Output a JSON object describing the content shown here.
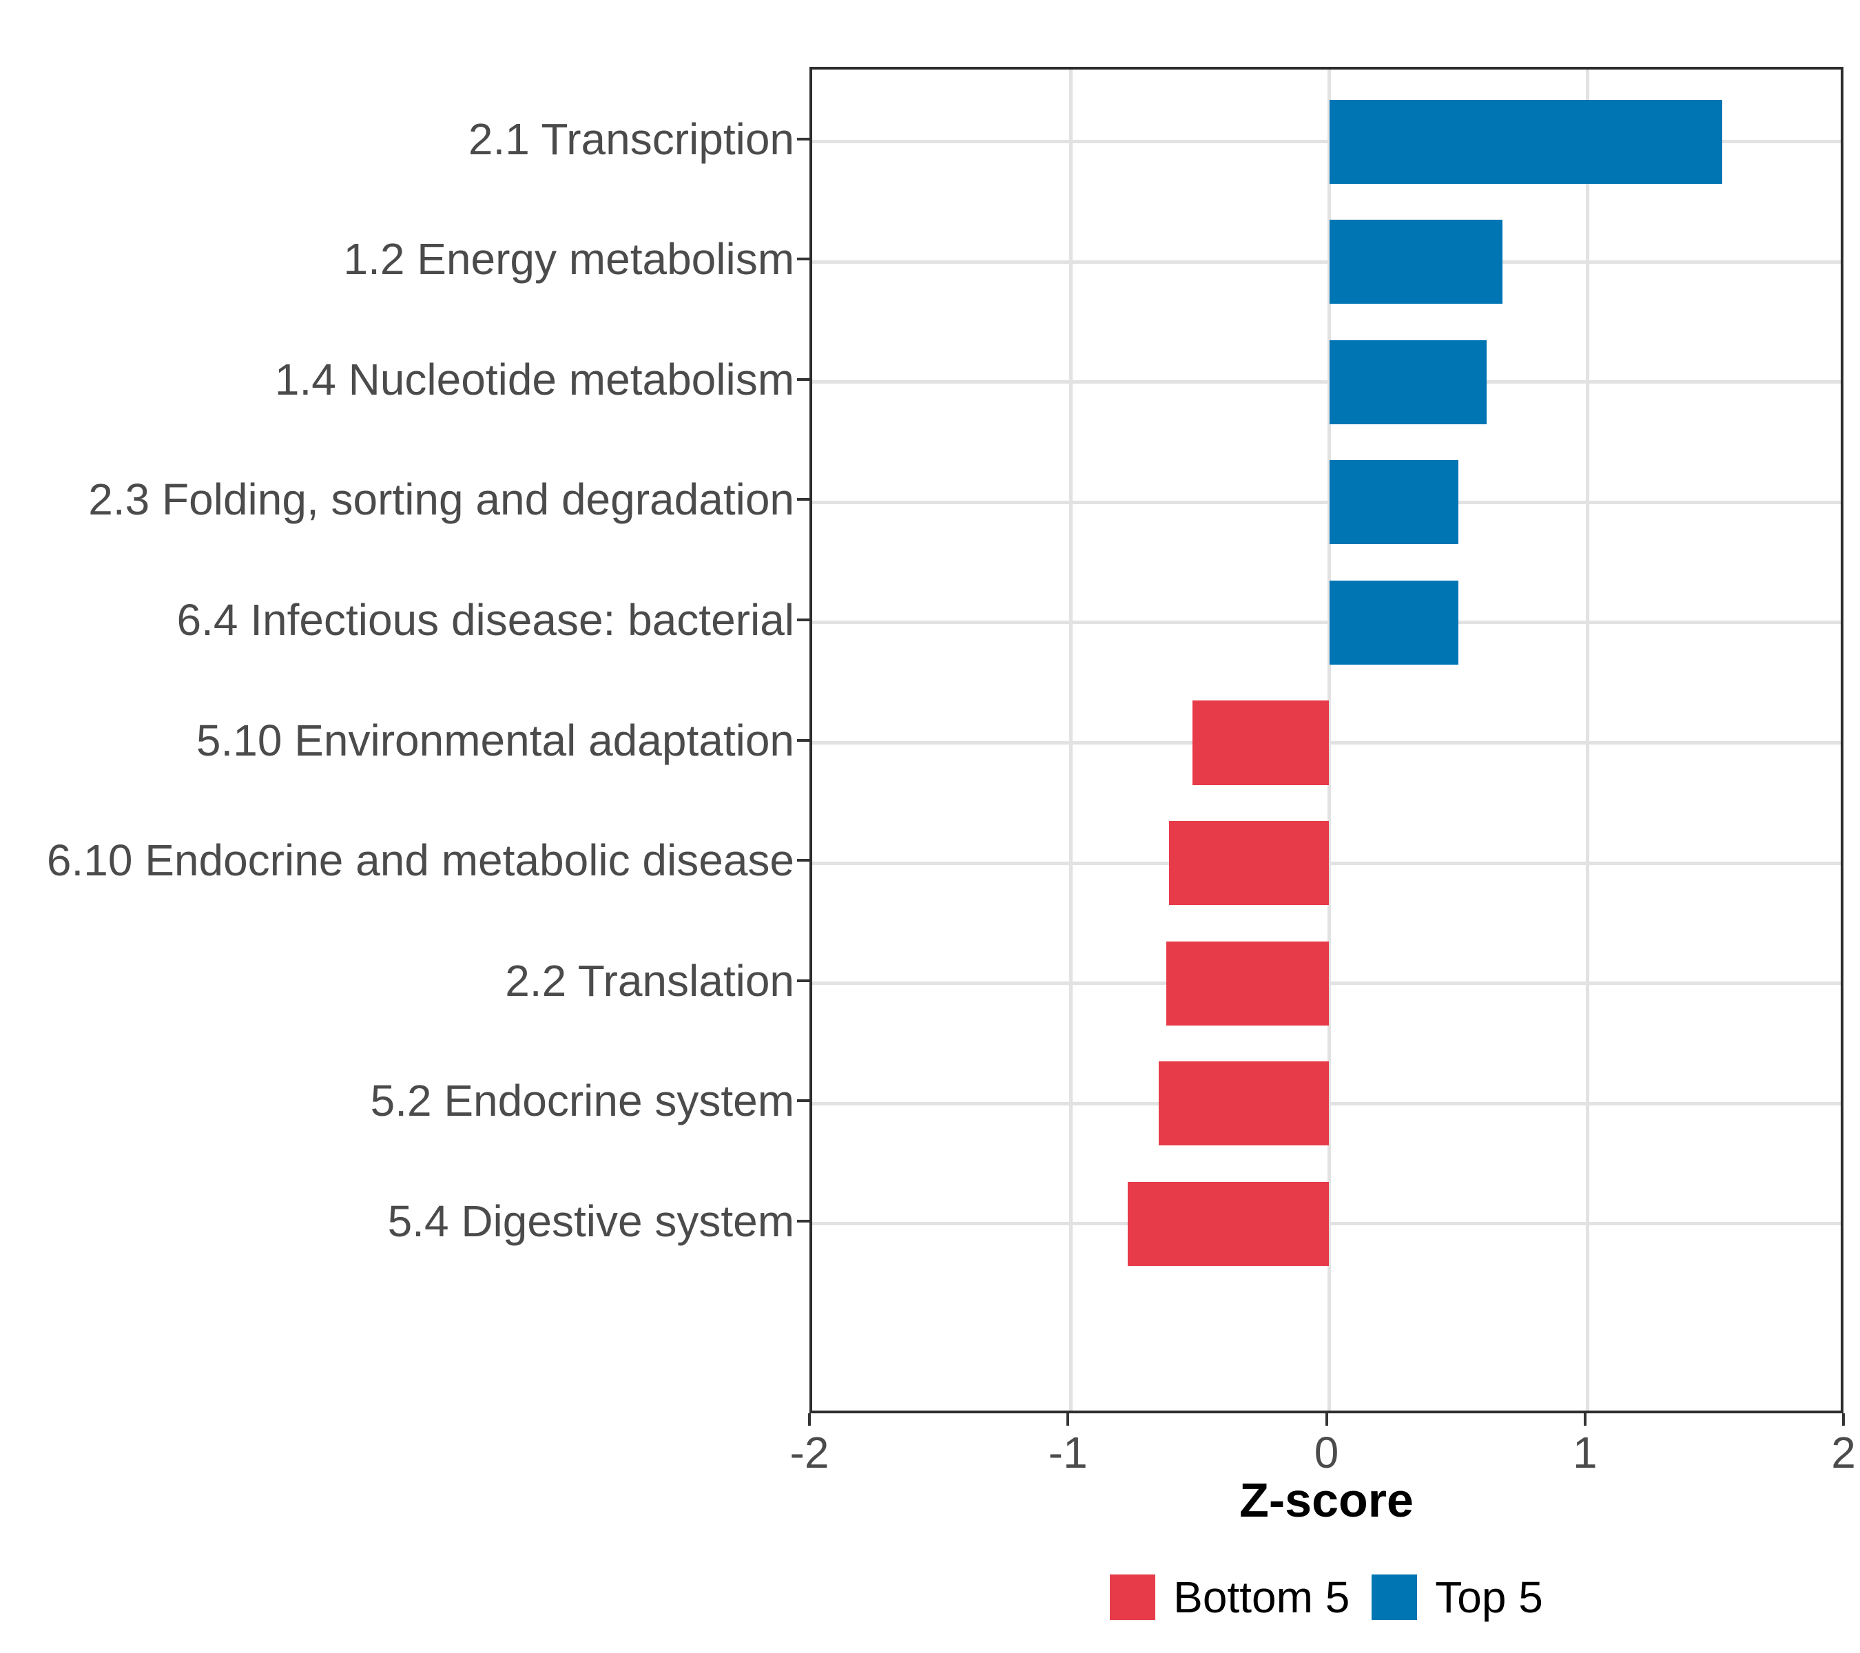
{
  "chart_data": {
    "type": "bar",
    "orientation": "horizontal",
    "title": "",
    "xlabel": "Z-score",
    "ylabel": "",
    "xlim": [
      -2,
      2
    ],
    "x_ticks": [
      "-2",
      "-1",
      "0",
      "1",
      "2"
    ],
    "grid": true,
    "legend_position": "bottom",
    "categories": [
      "2.1 Transcription",
      "1.2 Energy metabolism",
      "1.4 Nucleotide metabolism",
      "2.3 Folding, sorting and degradation",
      "6.4 Infectious disease: bacterial",
      "5.10 Environmental adaptation",
      "6.10 Endocrine and metabolic disease",
      "2.2 Translation",
      "5.2 Endocrine system",
      "5.4 Digestive system"
    ],
    "values": [
      1.52,
      0.67,
      0.61,
      0.5,
      0.5,
      -0.53,
      -0.62,
      -0.63,
      -0.66,
      -0.78
    ],
    "bar_groups": [
      "Top 5",
      "Top 5",
      "Top 5",
      "Top 5",
      "Top 5",
      "Bottom 5",
      "Bottom 5",
      "Bottom 5",
      "Bottom 5",
      "Bottom 5"
    ],
    "legend": {
      "entries": [
        {
          "label": "Bottom 5",
          "color": "#e73b49"
        },
        {
          "label": "Top 5",
          "color": "#0075b4"
        }
      ]
    },
    "colors": {
      "Top 5": "#0075b4",
      "Bottom 5": "#e73b49",
      "grid": "#e2e2e2",
      "panel_border": "#2d2d2d",
      "axis_text": "#4b4b4b",
      "axis_title": "#000000"
    }
  }
}
